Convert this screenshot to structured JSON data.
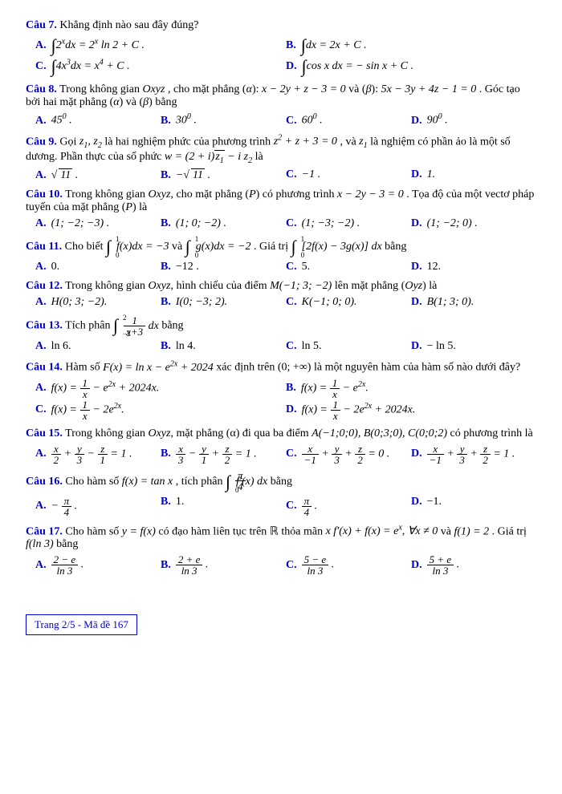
{
  "text_color": "#000000",
  "accent_color": "#0000cc",
  "font_family": "Times New Roman",
  "questions": [
    {
      "label": "Câu 7.",
      "text": "Khẳng định nào sau đây đúng?",
      "layout": "opt2",
      "opts": [
        {
          "l": "A.",
          "m": "∫2ˣdx = 2ˣ ln 2 + C ."
        },
        {
          "l": "B.",
          "m": "∫dx = 2x + C ."
        },
        {
          "l": "C.",
          "m": "∫4x³dx = x⁴ + C ."
        },
        {
          "l": "D.",
          "m": "∫cos x dx = − sin x + C ."
        }
      ]
    },
    {
      "label": "Câu 8.",
      "text_parts": [
        "Trong không gian ",
        "Oxyz",
        ", cho mặt phẳng (α): x − 2y + z − 3 = 0 và (β): 5x − 3y + 4z − 1 = 0 . Góc tạo bởi hai mặt phẳng (α) và (β) bằng"
      ],
      "layout": "opt4",
      "opts": [
        {
          "l": "A.",
          "m": "45⁰ ."
        },
        {
          "l": "B.",
          "m": "30⁰ ."
        },
        {
          "l": "C.",
          "m": "60⁰ ."
        },
        {
          "l": "D.",
          "m": "90⁰ ."
        }
      ]
    },
    {
      "label": "Câu 9.",
      "text_parts": [
        "Gọi ",
        "z₁, z₂",
        " là hai nghiệm phức của phương trình ",
        "z² + z + 3 = 0",
        ", và ",
        "z₁",
        " là nghiệm có phần ảo là một số dương. Phần thực của số phức ",
        "w = (2 + i) z̄₁ − i z₂",
        " là"
      ],
      "layout": "opt4",
      "opts": [
        {
          "l": "A.",
          "m": "√11 ."
        },
        {
          "l": "B.",
          "m": "−√11 ."
        },
        {
          "l": "C.",
          "m": "−1 ."
        },
        {
          "l": "D.",
          "m": "1 ."
        }
      ]
    },
    {
      "label": "Câu 10.",
      "text_parts": [
        "Trong không gian ",
        "Oxyz",
        ", cho mặt phẳng (P) có phương trình ",
        "x − 2y − 3 = 0",
        ". Tọa độ của một vectơ pháp tuyến của mặt phẳng (P) là"
      ],
      "layout": "opt4",
      "opts": [
        {
          "l": "A.",
          "m": "(1; −2; −3) ."
        },
        {
          "l": "B.",
          "m": "(1; 0; −2) ."
        },
        {
          "l": "C.",
          "m": "(1; −3; −2) ."
        },
        {
          "l": "D.",
          "m": "(1; −2; 0) ."
        }
      ]
    },
    {
      "label": "Câu 11.",
      "text_parts": [
        "Cho biết ",
        "∫₀¹ f(x)dx = −3",
        " và ",
        "∫₀¹ g(x)dx = −2",
        ". Giá trị ",
        "∫₀¹ [2f(x) − 3g(x)] dx",
        " bằng"
      ],
      "layout": "opt4",
      "opts": [
        {
          "l": "A.",
          "m": "0."
        },
        {
          "l": "B.",
          "m": "−12 ."
        },
        {
          "l": "C.",
          "m": "5."
        },
        {
          "l": "D.",
          "m": "12."
        }
      ]
    },
    {
      "label": "Câu 12.",
      "text_parts": [
        "Trong không gian ",
        "Oxyz",
        ", hình chiếu của điểm ",
        "M(−1; 3; −2)",
        " lên mặt phẳng (Oyz) là"
      ],
      "layout": "opt4",
      "opts": [
        {
          "l": "A.",
          "m": "H(0; 3; −2)."
        },
        {
          "l": "B.",
          "m": "I(0; −3; 2)."
        },
        {
          "l": "C.",
          "m": "K(−1; 0; 0)."
        },
        {
          "l": "D.",
          "m": "B(1; 3; 0)."
        }
      ]
    },
    {
      "label": "Câu 13.",
      "text_parts": [
        "Tích phân ",
        "∫₋₂² (1/(x+3)) dx",
        " bằng"
      ],
      "layout": "opt4",
      "opts": [
        {
          "l": "A.",
          "m": "ln 6."
        },
        {
          "l": "B.",
          "m": "ln 4."
        },
        {
          "l": "C.",
          "m": "ln 5."
        },
        {
          "l": "D.",
          "m": "− ln 5."
        }
      ]
    },
    {
      "label": "Câu 14.",
      "text_parts": [
        "Hàm số ",
        "F(x) = ln x − e²ˣ + 2024",
        " xác định trên (0; +∞) là một nguyên hàm của hàm số nào dưới đây?"
      ],
      "layout": "opt2",
      "opts": [
        {
          "l": "A.",
          "m": "f(x) = 1/x − e²ˣ + 2024x."
        },
        {
          "l": "B.",
          "m": "f(x) = 1/x − e²ˣ."
        },
        {
          "l": "C.",
          "m": "f(x) = 1/x − 2e²ˣ."
        },
        {
          "l": "D.",
          "m": "f(x) = 1/x − 2e²ˣ + 2024x."
        }
      ]
    },
    {
      "label": "Câu 15.",
      "text_parts": [
        "Trong không gian ",
        "Oxyz",
        ", mặt phẳng (α) đi qua ba điểm ",
        "A(−1;0;0), B(0;3;0), C(0;0;2)",
        " có phương trình là"
      ],
      "layout": "opt4",
      "opts": [
        {
          "l": "A.",
          "m": "x/2 + y/3 − z/1 = 1 ."
        },
        {
          "l": "B.",
          "m": "x/3 − y/1 + z/2 = 1 ."
        },
        {
          "l": "C.",
          "m": "x/−1 + y/3 + z/2 = 0 ."
        },
        {
          "l": "D.",
          "m": "x/−1 + y/3 + z/2 = 1 ."
        }
      ]
    },
    {
      "label": "Câu 16.",
      "text_parts": [
        "Cho hàm số ",
        "f(x) = tan x",
        ", tích phân ",
        "∫₀^{π/4} f′(x) dx",
        " bằng"
      ],
      "layout": "opt4",
      "opts": [
        {
          "l": "A.",
          "m": "− π/4 ."
        },
        {
          "l": "B.",
          "m": "1."
        },
        {
          "l": "C.",
          "m": "π/4 ."
        },
        {
          "l": "D.",
          "m": "−1."
        }
      ]
    },
    {
      "label": "Câu 17.",
      "text_parts": [
        "Cho hàm số ",
        "y = f(x)",
        " có đạo hàm liên tục trên ℝ thỏa mãn ",
        "xf′(x) + f(x) = eˣ, ∀x ≠ 0",
        " và ",
        "f(1) = 2",
        ". Giá trị ",
        "f(ln 3)",
        " bằng"
      ],
      "layout": "opt4",
      "opts": [
        {
          "l": "A.",
          "m": "(2 − e)/ln 3 ."
        },
        {
          "l": "B.",
          "m": "(2 + e)/ln 3 ."
        },
        {
          "l": "C.",
          "m": "(5 − e)/ln 3 ."
        },
        {
          "l": "D.",
          "m": "(5 + e)/ln 3 ."
        }
      ]
    }
  ],
  "footer": "Trang 2/5 - Mã đề 167"
}
